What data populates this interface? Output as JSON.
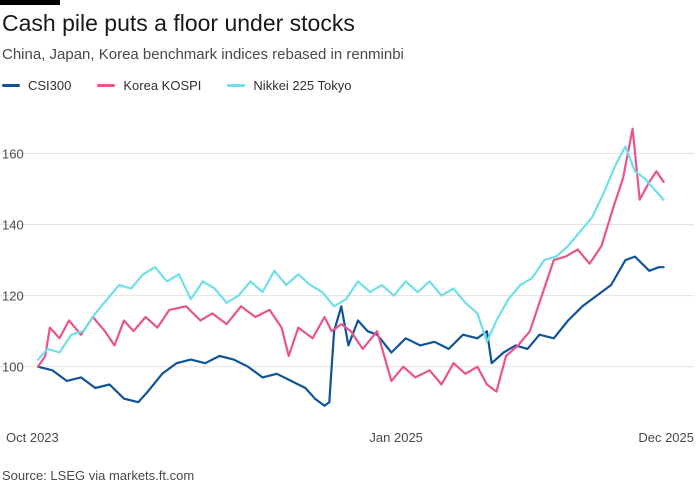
{
  "header": {
    "title": "Cash pile puts a floor under stocks",
    "subtitle": "China, Japan, Korea benchmark indices rebased in renminbi"
  },
  "legend": [
    {
      "label": "CSI300",
      "color": "#0f5499"
    },
    {
      "label": "Korea KOSPI",
      "color": "#e8548c"
    },
    {
      "label": "Nikkei 225 Tokyo",
      "color": "#6fe0ea"
    }
  ],
  "footer": {
    "source": "Source: LSEG via markets.ft.com"
  },
  "chart_data": {
    "type": "line",
    "title": "Cash pile puts a floor under stocks",
    "subtitle": "China, Japan, Korea benchmark indices rebased in renminbi",
    "x_unit": "months since Oct 2023",
    "xlim": [
      0,
      26.3
    ],
    "ylim": [
      85,
      170
    ],
    "y_ticks": [
      100,
      120,
      140,
      160
    ],
    "x_ticks": [
      {
        "x": 0,
        "label": "Oct 2023"
      },
      {
        "x": 15,
        "label": "Jan 2025"
      },
      {
        "x": 26,
        "label": "Dec 2025"
      }
    ],
    "grid": "horizontal",
    "legend_position": "top-left",
    "series": [
      {
        "name": "CSI300",
        "color": "#0f5499",
        "points": [
          [
            0,
            100
          ],
          [
            0.6,
            99
          ],
          [
            1.2,
            96
          ],
          [
            1.8,
            97
          ],
          [
            2.4,
            94
          ],
          [
            3,
            95
          ],
          [
            3.6,
            91
          ],
          [
            4.2,
            90
          ],
          [
            4.6,
            93
          ],
          [
            5.2,
            98
          ],
          [
            5.8,
            101
          ],
          [
            6.4,
            102
          ],
          [
            7,
            101
          ],
          [
            7.6,
            103
          ],
          [
            8.2,
            102
          ],
          [
            8.8,
            100
          ],
          [
            9.4,
            97
          ],
          [
            10,
            98
          ],
          [
            10.6,
            96
          ],
          [
            11.2,
            94
          ],
          [
            11.6,
            91
          ],
          [
            12,
            89
          ],
          [
            12.2,
            90
          ],
          [
            12.4,
            110
          ],
          [
            12.7,
            117
          ],
          [
            13,
            106
          ],
          [
            13.4,
            113
          ],
          [
            13.8,
            110
          ],
          [
            14.2,
            109
          ],
          [
            14.8,
            104
          ],
          [
            15.4,
            108
          ],
          [
            16,
            106
          ],
          [
            16.6,
            107
          ],
          [
            17.2,
            105
          ],
          [
            17.8,
            109
          ],
          [
            18.4,
            108
          ],
          [
            18.8,
            110
          ],
          [
            19,
            101
          ],
          [
            19.5,
            104
          ],
          [
            20,
            106
          ],
          [
            20.5,
            105
          ],
          [
            21,
            109
          ],
          [
            21.6,
            108
          ],
          [
            22.2,
            113
          ],
          [
            22.8,
            117
          ],
          [
            23.4,
            120
          ],
          [
            24,
            123
          ],
          [
            24.6,
            130
          ],
          [
            25,
            131
          ],
          [
            25.6,
            127
          ],
          [
            26,
            128
          ],
          [
            26.2,
            128
          ]
        ]
      },
      {
        "name": "Korea KOSPI",
        "color": "#e8548c",
        "points": [
          [
            0,
            100
          ],
          [
            0.3,
            103
          ],
          [
            0.5,
            111
          ],
          [
            0.9,
            108
          ],
          [
            1.3,
            113
          ],
          [
            1.8,
            109
          ],
          [
            2.3,
            114
          ],
          [
            2.8,
            110
          ],
          [
            3.2,
            106
          ],
          [
            3.6,
            113
          ],
          [
            4,
            110
          ],
          [
            4.5,
            114
          ],
          [
            5,
            111
          ],
          [
            5.5,
            116
          ],
          [
            6.2,
            117
          ],
          [
            6.8,
            113
          ],
          [
            7.3,
            115
          ],
          [
            7.9,
            112
          ],
          [
            8.5,
            117
          ],
          [
            9.1,
            114
          ],
          [
            9.7,
            116
          ],
          [
            10.2,
            111
          ],
          [
            10.5,
            103
          ],
          [
            10.9,
            111
          ],
          [
            11.5,
            108
          ],
          [
            12,
            114
          ],
          [
            12.3,
            110
          ],
          [
            12.7,
            112
          ],
          [
            13.1,
            110
          ],
          [
            13.6,
            105
          ],
          [
            14.2,
            110
          ],
          [
            14.8,
            96
          ],
          [
            15.3,
            100
          ],
          [
            15.8,
            97
          ],
          [
            16.4,
            99
          ],
          [
            16.9,
            95
          ],
          [
            17.4,
            101
          ],
          [
            17.9,
            98
          ],
          [
            18.4,
            100
          ],
          [
            18.8,
            95
          ],
          [
            19.2,
            93
          ],
          [
            19.6,
            103
          ],
          [
            20.1,
            106
          ],
          [
            20.6,
            110
          ],
          [
            21.1,
            120
          ],
          [
            21.6,
            130
          ],
          [
            22.1,
            131
          ],
          [
            22.6,
            133
          ],
          [
            23.1,
            129
          ],
          [
            23.6,
            134
          ],
          [
            24.1,
            145
          ],
          [
            24.5,
            153
          ],
          [
            24.9,
            167
          ],
          [
            25.2,
            147
          ],
          [
            25.6,
            152
          ],
          [
            25.9,
            155
          ],
          [
            26.2,
            152
          ]
        ]
      },
      {
        "name": "Nikkei 225 Tokyo",
        "color": "#6fe0ea",
        "points": [
          [
            0,
            102
          ],
          [
            0.4,
            105
          ],
          [
            0.9,
            104
          ],
          [
            1.4,
            109
          ],
          [
            1.9,
            110
          ],
          [
            2.4,
            115
          ],
          [
            2.9,
            119
          ],
          [
            3.4,
            123
          ],
          [
            3.9,
            122
          ],
          [
            4.4,
            126
          ],
          [
            4.9,
            128
          ],
          [
            5.4,
            124
          ],
          [
            5.9,
            126
          ],
          [
            6.4,
            119
          ],
          [
            6.9,
            124
          ],
          [
            7.4,
            122
          ],
          [
            7.9,
            118
          ],
          [
            8.4,
            120
          ],
          [
            8.9,
            124
          ],
          [
            9.4,
            121
          ],
          [
            9.9,
            127
          ],
          [
            10.4,
            123
          ],
          [
            10.9,
            126
          ],
          [
            11.4,
            123
          ],
          [
            11.9,
            121
          ],
          [
            12.4,
            117
          ],
          [
            12.9,
            119
          ],
          [
            13.4,
            124
          ],
          [
            13.9,
            121
          ],
          [
            14.4,
            123
          ],
          [
            14.9,
            120
          ],
          [
            15.4,
            124
          ],
          [
            15.9,
            121
          ],
          [
            16.4,
            124
          ],
          [
            16.9,
            120
          ],
          [
            17.4,
            122
          ],
          [
            17.9,
            118
          ],
          [
            18.4,
            115
          ],
          [
            18.8,
            107
          ],
          [
            19.2,
            113
          ],
          [
            19.7,
            119
          ],
          [
            20.2,
            123
          ],
          [
            20.7,
            125
          ],
          [
            21.2,
            130
          ],
          [
            21.7,
            131
          ],
          [
            22.2,
            134
          ],
          [
            22.7,
            138
          ],
          [
            23.2,
            142
          ],
          [
            23.7,
            149
          ],
          [
            24.2,
            157
          ],
          [
            24.6,
            162
          ],
          [
            25,
            155
          ],
          [
            25.4,
            153
          ],
          [
            25.8,
            150
          ],
          [
            26.2,
            147
          ]
        ]
      }
    ]
  }
}
